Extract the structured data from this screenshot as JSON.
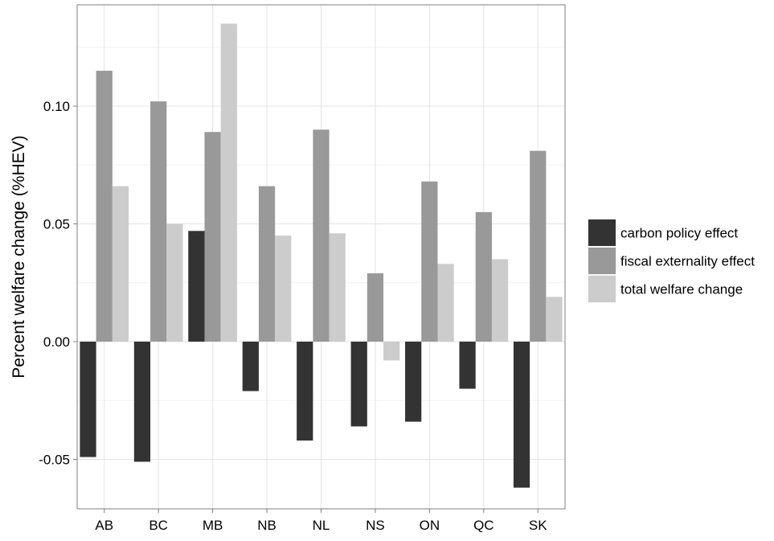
{
  "chart_data": {
    "type": "bar",
    "title": "",
    "xlabel": "",
    "ylabel": "Percent welfare change (%HEV)",
    "categories": [
      "AB",
      "BC",
      "MB",
      "NB",
      "NL",
      "NS",
      "ON",
      "QC",
      "SK"
    ],
    "series": [
      {
        "name": "carbon policy effect",
        "color": "#333333",
        "values": [
          -0.049,
          -0.051,
          0.047,
          -0.021,
          -0.042,
          -0.036,
          -0.034,
          -0.02,
          -0.062
        ]
      },
      {
        "name": "fiscal externality effect",
        "color": "#999999",
        "values": [
          0.115,
          0.102,
          0.089,
          0.066,
          0.09,
          0.029,
          0.068,
          0.055,
          0.081
        ]
      },
      {
        "name": "total welfare change",
        "color": "#cccccc",
        "values": [
          0.066,
          0.05,
          0.135,
          0.045,
          0.046,
          -0.008,
          0.033,
          0.035,
          0.019
        ]
      }
    ],
    "yticks": [
      -0.05,
      0.0,
      0.05,
      0.1
    ],
    "ytick_labels": [
      "-0.05",
      "0.00",
      "0.05",
      "0.10"
    ],
    "ylim": [
      -0.071,
      0.143
    ],
    "grid": true,
    "legend_position": "right"
  }
}
